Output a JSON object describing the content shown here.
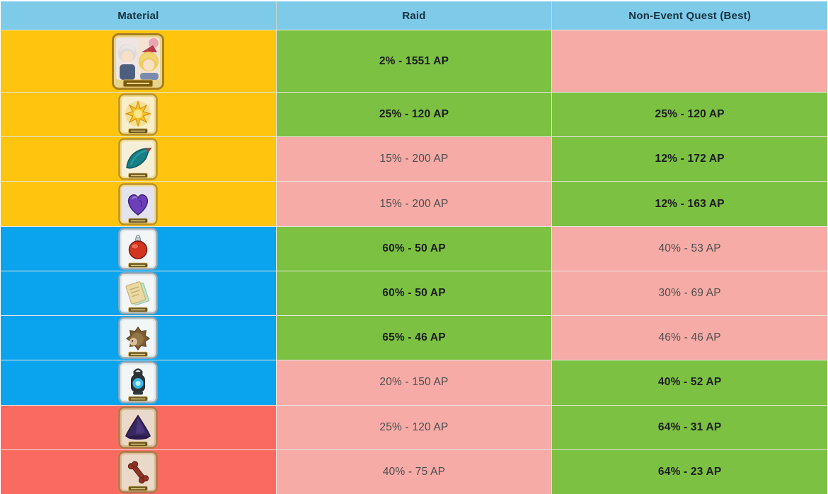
{
  "header": {
    "columns": [
      "Material",
      "Raid",
      "Non-Event Quest (Best)"
    ]
  },
  "colors": {
    "header_bg": "#7ECAE9",
    "header_text": "#17313F",
    "tiers": {
      "gold": "#FEC40E",
      "blue": "#0AA3EE",
      "red": "#FA6A61"
    },
    "good_bg": "#7CC142",
    "bad_bg": "#F6ABA6",
    "good_text": "#1C1C1C",
    "bad_text": "#4E4E4E"
  },
  "rows": [
    {
      "icon": "craft-essence-card-icon",
      "material_tier": "gold",
      "raid": "2% - 1551 AP",
      "raid_status": "good",
      "non_event": "",
      "non_event_status": "bad"
    },
    {
      "icon": "sun-burst-item-icon",
      "material_tier": "gold",
      "raid": "25% - 120 AP",
      "raid_status": "good",
      "non_event": "25% - 120 AP",
      "non_event_status": "good"
    },
    {
      "icon": "manta-fin-item-icon",
      "material_tier": "gold",
      "raid": "15% - 200 AP",
      "raid_status": "bad",
      "non_event": "12% - 172 AP",
      "non_event_status": "good"
    },
    {
      "icon": "purple-heart-item-icon",
      "material_tier": "gold",
      "raid": "15% - 200 AP",
      "raid_status": "bad",
      "non_event": "12% - 163 AP",
      "non_event_status": "good"
    },
    {
      "icon": "red-orb-item-icon",
      "material_tier": "blue",
      "raid": "60% - 50 AP",
      "raid_status": "good",
      "non_event": "40% - 53 AP",
      "non_event_status": "bad"
    },
    {
      "icon": "spell-pages-item-icon",
      "material_tier": "blue",
      "raid": "60% - 50 AP",
      "raid_status": "good",
      "non_event": "30% - 69 AP",
      "non_event_status": "bad"
    },
    {
      "icon": "hedgehog-item-icon",
      "material_tier": "blue",
      "raid": "65% - 46 AP",
      "raid_status": "good",
      "non_event": "46% - 46 AP",
      "non_event_status": "bad"
    },
    {
      "icon": "lantern-item-icon",
      "material_tier": "blue",
      "raid": "20% - 150 AP",
      "raid_status": "bad",
      "non_event": "40% - 52 AP",
      "non_event_status": "good"
    },
    {
      "icon": "purple-dust-item-icon",
      "material_tier": "red",
      "raid": "25% - 120 AP",
      "raid_status": "bad",
      "non_event": "64% - 31 AP",
      "non_event_status": "good"
    },
    {
      "icon": "bone-item-icon",
      "material_tier": "red",
      "raid": "40% - 75 AP",
      "raid_status": "bad",
      "non_event": "64% - 23 AP",
      "non_event_status": "good"
    }
  ]
}
